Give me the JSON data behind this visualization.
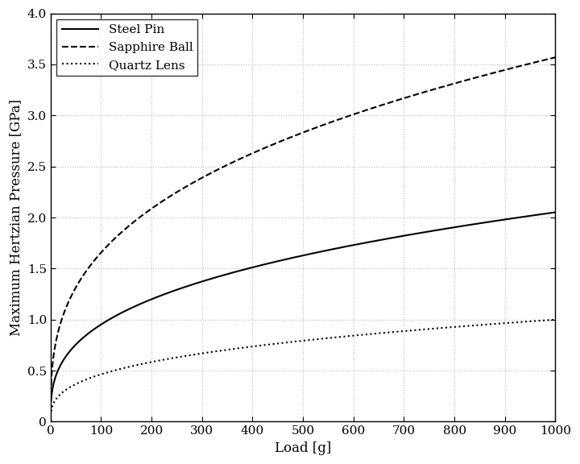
{
  "title": "",
  "xlabel": "Load [g]",
  "ylabel": "Maximum Hertzian Pressure [GPa]",
  "xlim": [
    0,
    1000
  ],
  "ylim": [
    0,
    4
  ],
  "xticks": [
    0,
    100,
    200,
    300,
    400,
    500,
    600,
    700,
    800,
    900,
    1000
  ],
  "yticks": [
    0,
    0.5,
    1.0,
    1.5,
    2.0,
    2.5,
    3.0,
    3.5,
    4.0
  ],
  "series": [
    {
      "label": "Steel Pin",
      "linestyle": "-",
      "color": "#000000",
      "linewidth": 1.5,
      "scale": 0.2052,
      "exponent": 0.3333
    },
    {
      "label": "Sapphire Ball",
      "linestyle": "--",
      "color": "#000000",
      "linewidth": 1.5,
      "scale": 0.357,
      "exponent": 0.3333
    },
    {
      "label": "Quartz Lens",
      "linestyle": ":",
      "color": "#000000",
      "linewidth": 1.5,
      "scale": 0.1,
      "exponent": 0.3333
    }
  ],
  "grid_color": "#bbbbbb",
  "grid_linestyle": ":",
  "background_color": "#ffffff",
  "legend_loc": "upper left",
  "font_family": "serif",
  "legend_fontsize": 11,
  "tick_fontsize": 11,
  "label_fontsize": 12
}
